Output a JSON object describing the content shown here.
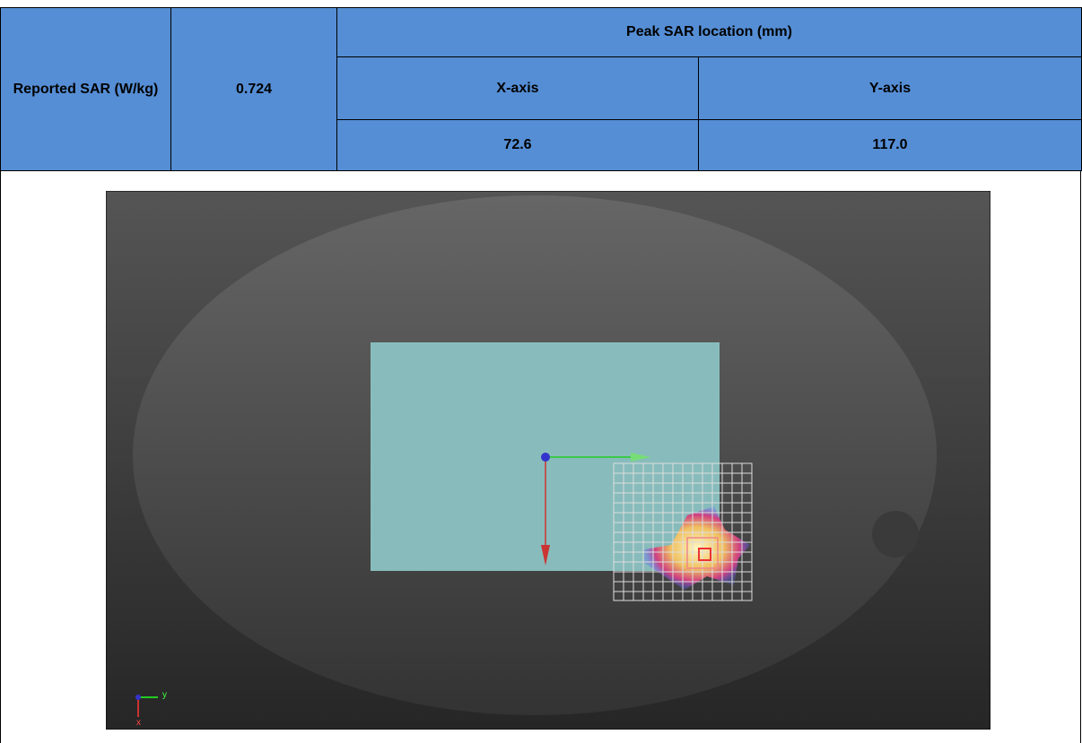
{
  "table": {
    "reported_sar_label": "Reported SAR (W/kg)",
    "reported_sar_value": "0.724",
    "peak_location_label": "Peak SAR location (mm)",
    "x_axis_label": "X-axis",
    "y_axis_label": "Y-axis",
    "x_value": "72.6",
    "y_value": "117.0"
  },
  "image": {
    "axis_y_label": "y",
    "axis_x_label": "x"
  }
}
